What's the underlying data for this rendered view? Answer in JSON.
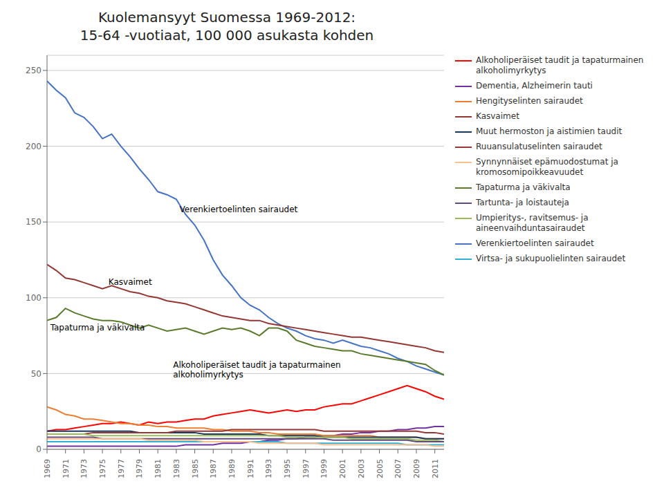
{
  "chart_data": {
    "type": "line",
    "title": "Kuolemansyyt Suomessa 1969-2012:\n15-64 -vuotiaat, 100 000 asukasta kohden",
    "x": [
      1969,
      1970,
      1971,
      1972,
      1973,
      1974,
      1975,
      1976,
      1977,
      1978,
      1979,
      1980,
      1981,
      1982,
      1983,
      1984,
      1985,
      1986,
      1987,
      1988,
      1989,
      1990,
      1991,
      1992,
      1993,
      1994,
      1995,
      1996,
      1997,
      1998,
      1999,
      2000,
      2001,
      2002,
      2003,
      2004,
      2005,
      2006,
      2007,
      2008,
      2009,
      2010,
      2011,
      2012
    ],
    "xlim": [
      1969,
      2012
    ],
    "xticks": [
      1969,
      1971,
      1973,
      1975,
      1977,
      1979,
      1981,
      1983,
      1985,
      1987,
      1989,
      1991,
      1993,
      1995,
      1997,
      1999,
      2001,
      2003,
      2005,
      2007,
      2009,
      2011
    ],
    "ylim": [
      0,
      260
    ],
    "yticks": [
      0,
      50,
      100,
      150,
      200,
      250
    ],
    "grid": true,
    "legend": "right",
    "series": [
      {
        "name": "Verenkiertoelinten sairaudet",
        "color": "#4472C4",
        "values": [
          243,
          237,
          232,
          222,
          219,
          213,
          205,
          208,
          200,
          193,
          185,
          178,
          170,
          168,
          165,
          155,
          148,
          138,
          125,
          115,
          108,
          100,
          95,
          92,
          87,
          83,
          80,
          78,
          75,
          73,
          72,
          70,
          72,
          70,
          68,
          67,
          65,
          63,
          60,
          58,
          55,
          53,
          51,
          49
        ]
      },
      {
        "name": "Kasvaimet",
        "color": "#943634",
        "values": [
          122,
          118,
          113,
          112,
          110,
          108,
          106,
          108,
          106,
          104,
          103,
          101,
          100,
          98,
          97,
          96,
          94,
          92,
          90,
          88,
          87,
          86,
          85,
          85,
          83,
          82,
          81,
          80,
          79,
          78,
          77,
          76,
          75,
          74,
          74,
          73,
          72,
          71,
          70,
          69,
          68,
          67,
          65,
          64
        ]
      },
      {
        "name": "Tapaturma ja väkivalta",
        "color": "#5A7A2B",
        "values": [
          85,
          87,
          93,
          90,
          88,
          86,
          85,
          85,
          84,
          82,
          80,
          82,
          80,
          78,
          79,
          80,
          78,
          76,
          78,
          80,
          79,
          80,
          78,
          75,
          80,
          80,
          78,
          72,
          70,
          68,
          67,
          66,
          65,
          65,
          63,
          62,
          61,
          60,
          59,
          58,
          57,
          56,
          52,
          49
        ]
      },
      {
        "name": "Dementia, Alzheimerin tauti",
        "color": "#7030A0",
        "values": [
          2,
          2,
          2,
          2,
          2,
          2,
          2,
          2,
          2,
          2,
          2,
          2,
          2,
          2,
          2,
          3,
          3,
          3,
          3,
          4,
          4,
          4,
          5,
          5,
          6,
          6,
          7,
          7,
          8,
          8,
          9,
          9,
          10,
          10,
          11,
          11,
          12,
          12,
          13,
          13,
          14,
          14,
          15,
          15
        ]
      },
      {
        "name": "Alkoholiperäiset taudit ja tapaturmainen\nalkoholimyrkytys",
        "color": "#FF0000",
        "values": [
          12,
          13,
          13,
          14,
          15,
          16,
          17,
          17,
          18,
          17,
          16,
          18,
          17,
          18,
          18,
          19,
          20,
          20,
          22,
          23,
          24,
          25,
          26,
          25,
          24,
          25,
          26,
          25,
          26,
          26,
          28,
          29,
          30,
          30,
          32,
          34,
          36,
          38,
          40,
          42,
          40,
          38,
          35,
          33
        ]
      },
      {
        "name": "Hengityselinten sairaudet",
        "color": "#ED7D31",
        "values": [
          28,
          26,
          23,
          22,
          20,
          20,
          19,
          18,
          17,
          17,
          16,
          16,
          15,
          15,
          14,
          14,
          14,
          14,
          13,
          13,
          12,
          12,
          12,
          11,
          11,
          10,
          10,
          10,
          10,
          10,
          9,
          9,
          9,
          9,
          9,
          9,
          8,
          8,
          8,
          8,
          8,
          7,
          7,
          7
        ]
      },
      {
        "name": "Muut hermoston ja aistimien taudit",
        "color": "#17375E",
        "values": [
          12,
          12,
          12,
          12,
          12,
          12,
          12,
          12,
          12,
          12,
          11,
          11,
          11,
          11,
          11,
          11,
          11,
          10,
          10,
          10,
          10,
          10,
          10,
          10,
          9,
          9,
          9,
          9,
          9,
          9,
          8,
          8,
          8,
          8,
          8,
          8,
          8,
          8,
          8,
          8,
          8,
          7,
          7,
          7
        ]
      },
      {
        "name": "Ruuansulatuselinten sairaudet",
        "color": "#953735",
        "values": [
          10,
          10,
          10,
          10,
          10,
          11,
          11,
          11,
          11,
          11,
          11,
          11,
          11,
          11,
          12,
          12,
          12,
          12,
          12,
          12,
          13,
          13,
          13,
          13,
          13,
          13,
          13,
          13,
          13,
          13,
          12,
          12,
          12,
          12,
          12,
          12,
          12,
          12,
          12,
          12,
          12,
          11,
          11,
          10
        ]
      },
      {
        "name": "Umpieritys-, ravitsemus- ja\naineenvaihduntasairaudet",
        "color": "#9BBB59",
        "values": [
          10,
          10,
          10,
          10,
          10,
          9,
          9,
          9,
          9,
          9,
          9,
          9,
          9,
          9,
          9,
          9,
          9,
          9,
          9,
          9,
          9,
          9,
          9,
          9,
          9,
          9,
          8,
          8,
          8,
          8,
          8,
          8,
          8,
          7,
          7,
          7,
          7,
          7,
          7,
          7,
          6,
          6,
          6,
          5
        ]
      },
      {
        "name": "Tartunta- ja loistauteja",
        "color": "#604A7B",
        "values": [
          8,
          8,
          8,
          8,
          8,
          8,
          7,
          7,
          7,
          7,
          7,
          7,
          7,
          7,
          7,
          7,
          7,
          7,
          7,
          7,
          7,
          7,
          7,
          7,
          7,
          7,
          7,
          7,
          7,
          7,
          7,
          6,
          6,
          6,
          6,
          6,
          6,
          6,
          6,
          6,
          5,
          5,
          5,
          5
        ]
      },
      {
        "name": "Virtsa- ja sukupuolielinten sairaudet",
        "color": "#31B0D5",
        "values": [
          5,
          5,
          5,
          5,
          5,
          5,
          5,
          5,
          5,
          5,
          5,
          5,
          5,
          5,
          5,
          5,
          5,
          5,
          5,
          5,
          5,
          5,
          5,
          5,
          5,
          5,
          4,
          4,
          4,
          4,
          4,
          4,
          4,
          4,
          4,
          4,
          4,
          4,
          4,
          3,
          3,
          3,
          3,
          3
        ]
      },
      {
        "name": "Synnynnäiset epämuodostumat ja\nkromosomipoikkeavuudet",
        "color": "#FABF8F",
        "values": [
          7,
          7,
          7,
          7,
          7,
          7,
          7,
          7,
          7,
          7,
          7,
          6,
          6,
          6,
          6,
          6,
          6,
          5,
          5,
          5,
          5,
          5,
          5,
          4,
          4,
          4,
          4,
          4,
          4,
          4,
          3,
          3,
          3,
          3,
          3,
          3,
          3,
          3,
          3,
          3,
          3,
          3,
          2,
          2
        ]
      }
    ],
    "annotations": [
      {
        "text": "Verenkiertoelinten sairaudet",
        "x": 1983.2,
        "y": 155
      },
      {
        "text": "Kasvaimet",
        "x": 1975.5,
        "y": 107
      },
      {
        "text": "Tapaturma ja väkivalta",
        "x": 1969.2,
        "y": 77
      },
      {
        "text": "Alkoholiperäiset taudit ja tapaturmainen\nalkoholimyrkytys",
        "x": 1982.5,
        "y": 46
      }
    ]
  }
}
